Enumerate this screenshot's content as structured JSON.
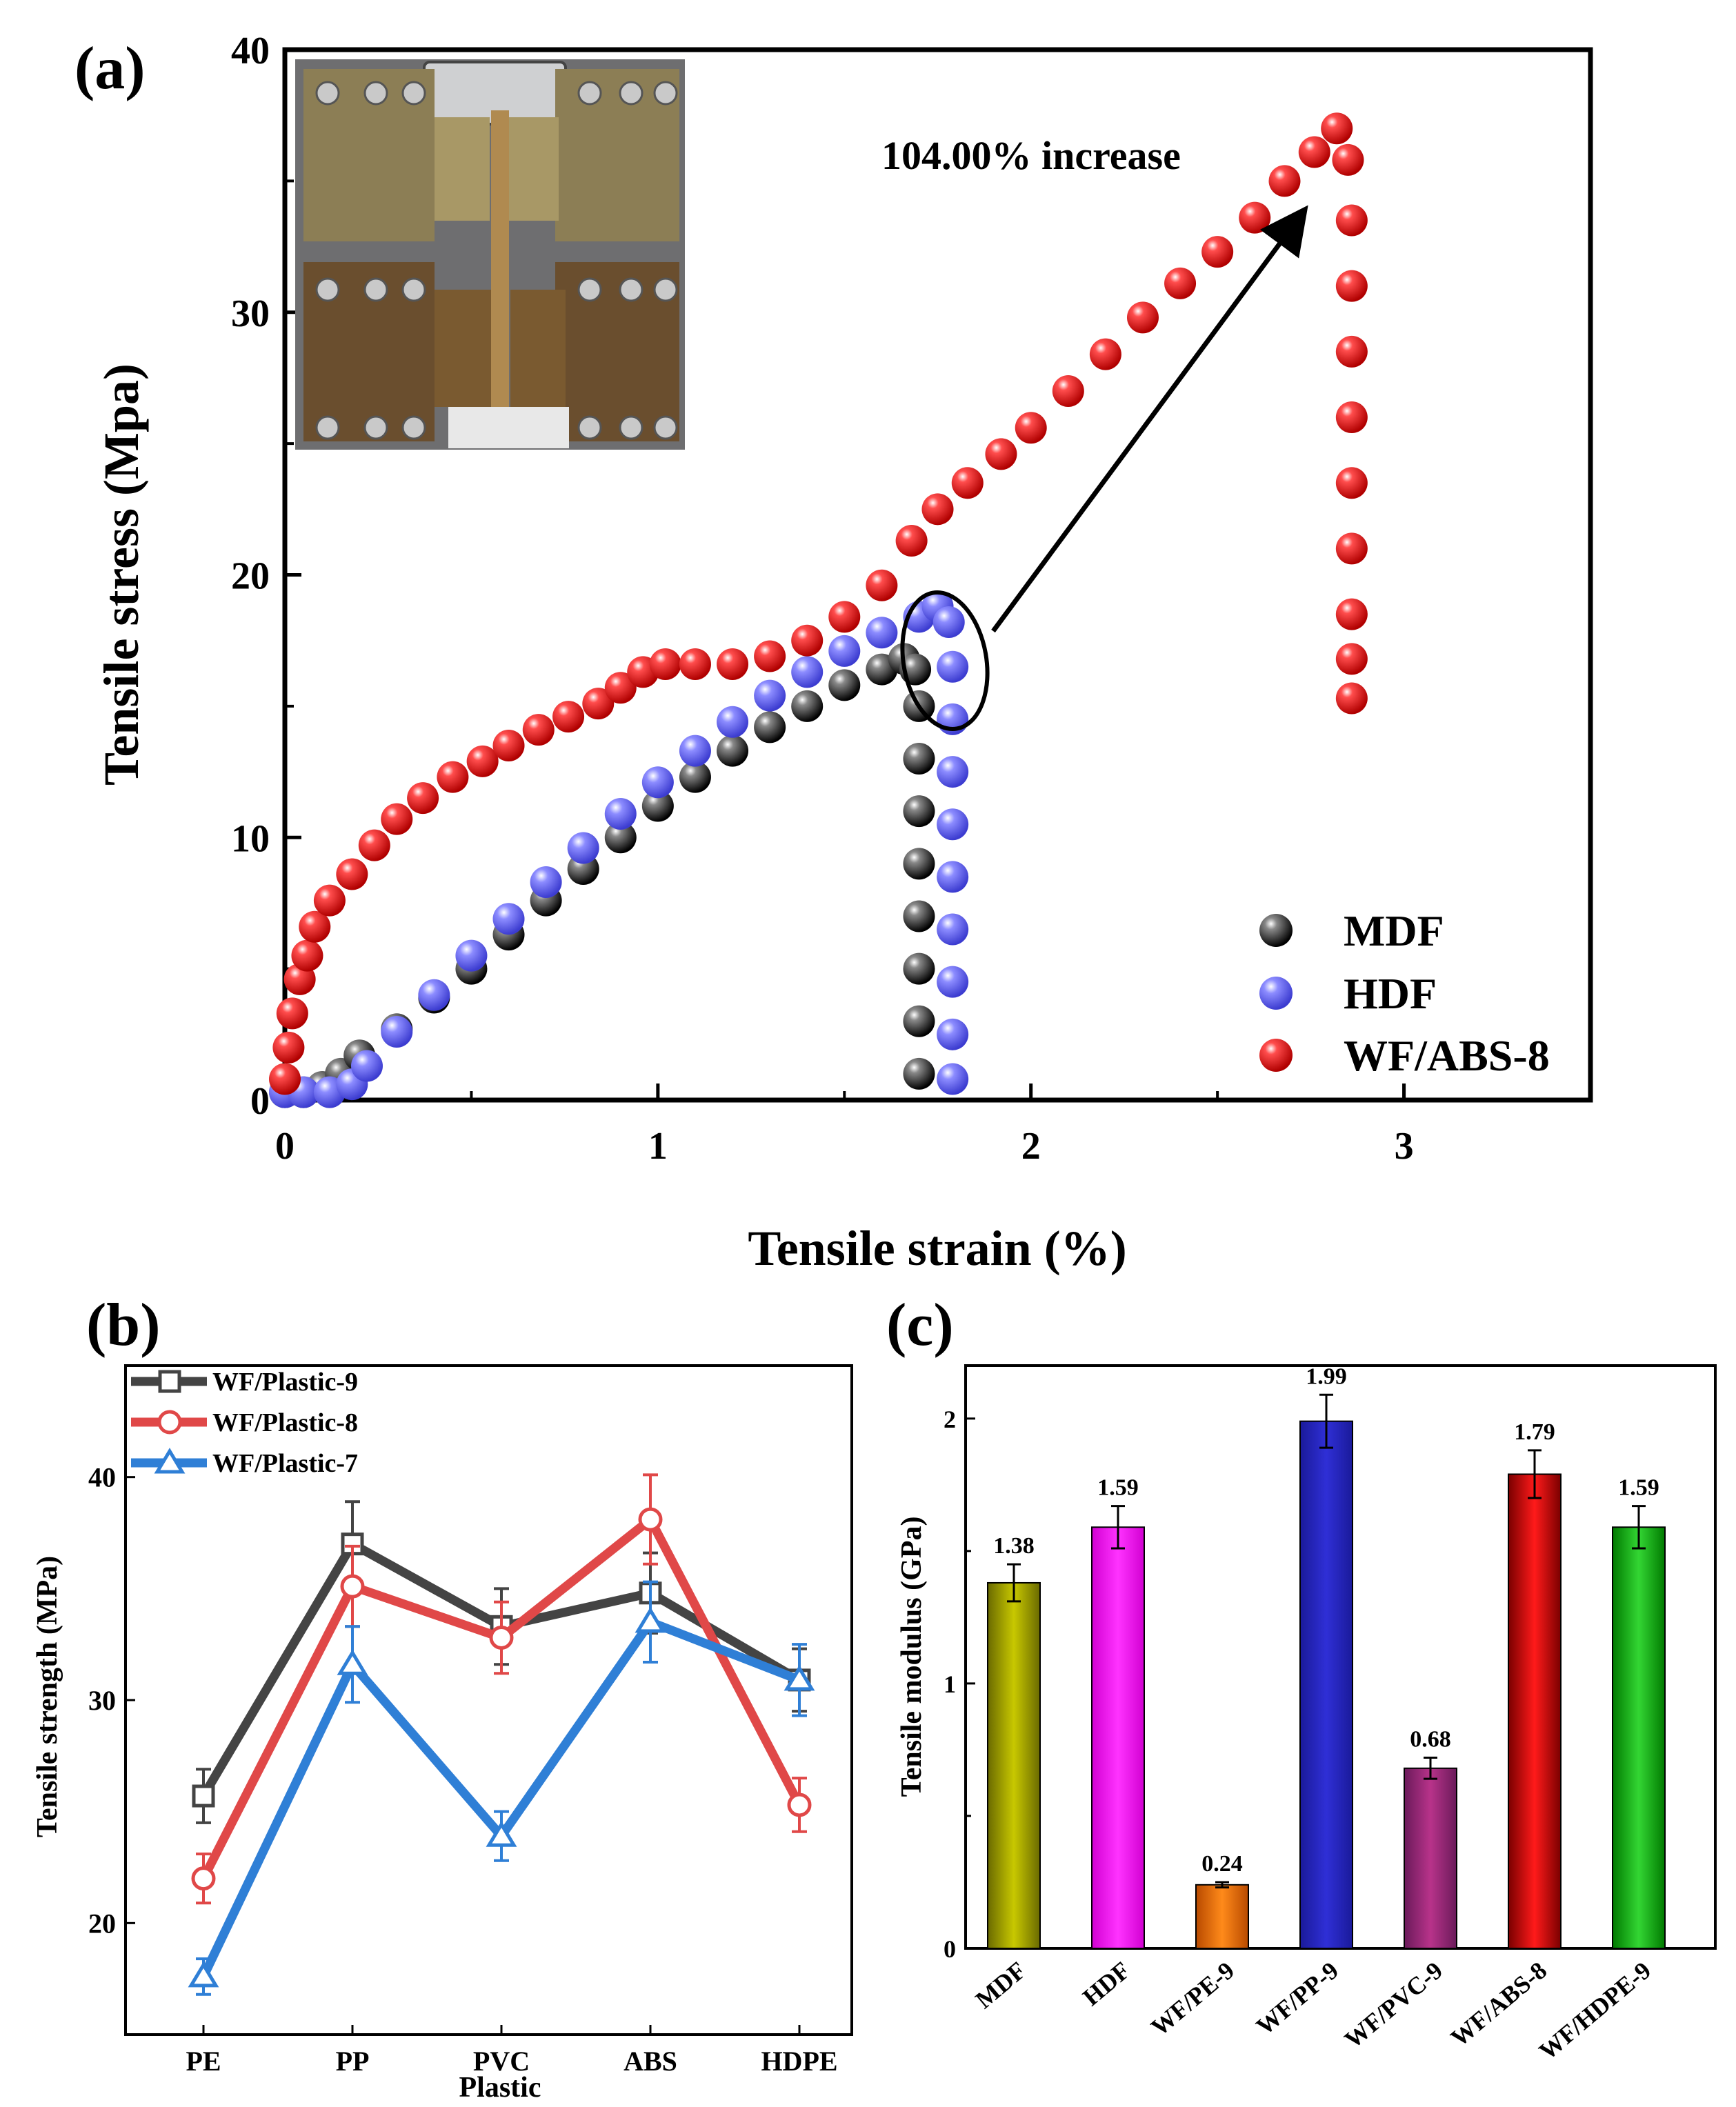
{
  "figure": {
    "panel_a_label": "(a)",
    "panel_b_label": "(b)",
    "panel_c_label": "(c)",
    "inset_photo": "tensile-test-grips-photo"
  },
  "chart_data": [
    {
      "id": "a",
      "type": "scatter",
      "title": "",
      "xlabel": "Tensile strain (%)",
      "ylabel": "Tensile stress (Mpa)",
      "xlim": [
        0,
        3.5
      ],
      "ylim": [
        0,
        40
      ],
      "xticks": [
        "0",
        "1",
        "2",
        "3"
      ],
      "yticks": [
        "0",
        "10",
        "20",
        "30",
        "40"
      ],
      "legend_position": "bottom-right",
      "annotation": "104.00% increase",
      "series": [
        {
          "name": "MDF",
          "color": "#111111",
          "points": [
            [
              0,
              0.3
            ],
            [
              0.05,
              0.3
            ],
            [
              0.1,
              0.5
            ],
            [
              0.15,
              1.0
            ],
            [
              0.2,
              1.7
            ],
            [
              0.3,
              2.7
            ],
            [
              0.4,
              3.9
            ],
            [
              0.5,
              5.0
            ],
            [
              0.6,
              6.3
            ],
            [
              0.7,
              7.6
            ],
            [
              0.8,
              8.8
            ],
            [
              0.9,
              10.0
            ],
            [
              1.0,
              11.2
            ],
            [
              1.1,
              12.3
            ],
            [
              1.2,
              13.3
            ],
            [
              1.3,
              14.2
            ],
            [
              1.4,
              15.0
            ],
            [
              1.5,
              15.8
            ],
            [
              1.6,
              16.4
            ],
            [
              1.66,
              16.8
            ],
            [
              1.69,
              16.4
            ],
            [
              1.7,
              15.0
            ],
            [
              1.7,
              13.0
            ],
            [
              1.7,
              11.0
            ],
            [
              1.7,
              9.0
            ],
            [
              1.7,
              7.0
            ],
            [
              1.7,
              5.0
            ],
            [
              1.7,
              3.0
            ],
            [
              1.7,
              1.0
            ]
          ]
        },
        {
          "name": "HDF",
          "color": "#5a5ae6",
          "points": [
            [
              0,
              0.3
            ],
            [
              0.05,
              0.3
            ],
            [
              0.12,
              0.3
            ],
            [
              0.18,
              0.6
            ],
            [
              0.22,
              1.3
            ],
            [
              0.3,
              2.6
            ],
            [
              0.4,
              4.0
            ],
            [
              0.5,
              5.5
            ],
            [
              0.6,
              6.9
            ],
            [
              0.7,
              8.3
            ],
            [
              0.8,
              9.6
            ],
            [
              0.9,
              10.9
            ],
            [
              1.0,
              12.1
            ],
            [
              1.1,
              13.3
            ],
            [
              1.2,
              14.4
            ],
            [
              1.3,
              15.4
            ],
            [
              1.4,
              16.3
            ],
            [
              1.5,
              17.1
            ],
            [
              1.6,
              17.8
            ],
            [
              1.7,
              18.4
            ],
            [
              1.75,
              18.8
            ],
            [
              1.78,
              18.2
            ],
            [
              1.79,
              16.5
            ],
            [
              1.79,
              14.5
            ],
            [
              1.79,
              12.5
            ],
            [
              1.79,
              10.5
            ],
            [
              1.79,
              8.5
            ],
            [
              1.79,
              6.5
            ],
            [
              1.79,
              4.5
            ],
            [
              1.79,
              2.5
            ],
            [
              1.79,
              0.8
            ]
          ]
        },
        {
          "name": "WF/ABS-8",
          "color": "#e01a1a",
          "points": [
            [
              0,
              0.8
            ],
            [
              0.01,
              2.0
            ],
            [
              0.02,
              3.3
            ],
            [
              0.04,
              4.6
            ],
            [
              0.06,
              5.5
            ],
            [
              0.08,
              6.6
            ],
            [
              0.12,
              7.6
            ],
            [
              0.18,
              8.6
            ],
            [
              0.24,
              9.7
            ],
            [
              0.3,
              10.7
            ],
            [
              0.37,
              11.5
            ],
            [
              0.45,
              12.3
            ],
            [
              0.53,
              12.9
            ],
            [
              0.6,
              13.5
            ],
            [
              0.68,
              14.1
            ],
            [
              0.76,
              14.6
            ],
            [
              0.84,
              15.1
            ],
            [
              0.9,
              15.7
            ],
            [
              0.96,
              16.3
            ],
            [
              1.02,
              16.6
            ],
            [
              1.1,
              16.6
            ],
            [
              1.2,
              16.6
            ],
            [
              1.3,
              16.9
            ],
            [
              1.4,
              17.5
            ],
            [
              1.5,
              18.4
            ],
            [
              1.6,
              19.6
            ],
            [
              1.68,
              21.3
            ],
            [
              1.75,
              22.5
            ],
            [
              1.83,
              23.5
            ],
            [
              1.92,
              24.6
            ],
            [
              2.0,
              25.6
            ],
            [
              2.1,
              27.0
            ],
            [
              2.2,
              28.4
            ],
            [
              2.3,
              29.8
            ],
            [
              2.4,
              31.1
            ],
            [
              2.5,
              32.3
            ],
            [
              2.6,
              33.6
            ],
            [
              2.68,
              35.0
            ],
            [
              2.76,
              36.1
            ],
            [
              2.82,
              37.0
            ],
            [
              2.85,
              35.8
            ],
            [
              2.86,
              33.5
            ],
            [
              2.86,
              31.0
            ],
            [
              2.86,
              28.5
            ],
            [
              2.86,
              26.0
            ],
            [
              2.86,
              23.5
            ],
            [
              2.86,
              21.0
            ],
            [
              2.86,
              18.5
            ],
            [
              2.86,
              16.8
            ],
            [
              2.86,
              15.3
            ]
          ]
        }
      ]
    },
    {
      "id": "b",
      "type": "line",
      "title": "",
      "xlabel": "Plastic",
      "ylabel": "Tensile strength (MPa)",
      "ylim": [
        15,
        45
      ],
      "categories": [
        "PE",
        "PP",
        "PVC",
        "ABS",
        "HDPE"
      ],
      "yticks": [
        "20",
        "30",
        "40"
      ],
      "legend_position": "top-left",
      "series": [
        {
          "name": "WF/Plastic-9",
          "color": "#444444",
          "marker": "square",
          "values": [
            25.7,
            37.0,
            33.3,
            34.8,
            30.9
          ],
          "errors": [
            1.2,
            1.9,
            1.7,
            1.8,
            1.4
          ]
        },
        {
          "name": "WF/Plastic-8",
          "color": "#e04848",
          "marker": "circle",
          "values": [
            22.0,
            35.1,
            32.8,
            38.1,
            25.3
          ],
          "errors": [
            1.1,
            1.8,
            1.6,
            2.0,
            1.2
          ]
        },
        {
          "name": "WF/Plastic-7",
          "color": "#2f7fd6",
          "marker": "triangle",
          "values": [
            17.6,
            31.6,
            23.9,
            33.5,
            30.9
          ],
          "errors": [
            0.8,
            1.7,
            1.1,
            1.8,
            1.6
          ]
        }
      ]
    },
    {
      "id": "c",
      "type": "bar",
      "title": "",
      "xlabel": "",
      "ylabel": "Tensile modulus (GPa)",
      "ylim": [
        0,
        2.2
      ],
      "yticks": [
        "0",
        "1",
        "2"
      ],
      "categories": [
        "MDF",
        "HDF",
        "WF/PE-9",
        "WF/PP-9",
        "WF/PVC-9",
        "WF/ABS-8",
        "WF/HDPE-9"
      ],
      "values": [
        1.38,
        1.59,
        0.24,
        1.99,
        0.68,
        1.79,
        1.59
      ],
      "labels": [
        "1.38",
        "1.59",
        "0.24",
        "1.99",
        "0.68",
        "1.79",
        "1.59"
      ],
      "errors": [
        0.07,
        0.08,
        0.01,
        0.1,
        0.04,
        0.09,
        0.08
      ],
      "colors": [
        [
          "#6a6a00",
          "#c8c800"
        ],
        [
          "#d200d2",
          "#ff33ff"
        ],
        [
          "#b84a00",
          "#ff8a1a"
        ],
        [
          "#1a1a9a",
          "#2f2fd6"
        ],
        [
          "#6a1a5a",
          "#b8338a"
        ],
        [
          "#7a0000",
          "#ff1a1a"
        ],
        [
          "#007a00",
          "#33d633"
        ]
      ]
    }
  ]
}
